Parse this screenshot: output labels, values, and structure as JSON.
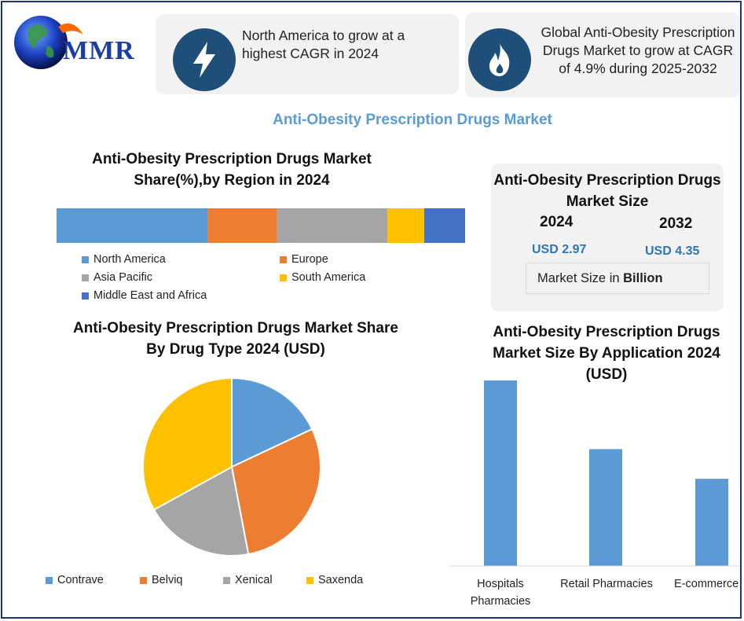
{
  "logo": {
    "text": "MMR",
    "icon": "globe-icon"
  },
  "info_cards": [
    {
      "icon": "lightning-icon",
      "text": "North America to grow at a highest CAGR in 2024"
    },
    {
      "icon": "flame-icon",
      "text": "Global Anti-Obesity Prescription Drugs Market to grow at CAGR of 4.9% during 2025-2032"
    }
  ],
  "main_title": "Anti-Obesity Prescription Drugs Market",
  "region_chart": {
    "title_line1": "Anti-Obesity Prescription Drugs Market",
    "title_line2": "Share(%),by Region in 2024",
    "legend": [
      "North America",
      "Europe",
      "Asia Pacific",
      "South America",
      "Middle East and Africa"
    ]
  },
  "market_size": {
    "title_line1": "Anti-Obesity Prescription Drugs",
    "title_line2": "Market Size",
    "year1": "2024",
    "year2": "2032",
    "value1": "USD 2.97",
    "value2": "USD 4.35",
    "unit_prefix": "Market Size in ",
    "unit_bold": "Billion"
  },
  "drug_chart": {
    "title_line1": "Anti-Obesity Prescription Drugs Market Share",
    "title_line2": "By Drug Type  2024  (USD)",
    "legend": [
      "Contrave",
      "Belviq",
      "Xenical",
      "Saxenda"
    ]
  },
  "app_chart": {
    "title_line1": "Anti-Obesity Prescription Drugs",
    "title_line2": "Market Size By Application  2024",
    "title_line3": "(USD)",
    "cat1_line1": "Hospitals",
    "cat1_line2": "Pharmacies",
    "cat2": "Retail Pharmacies",
    "cat3": "E-commerce"
  },
  "colors": {
    "blue": "#5b9bd5",
    "orange": "#ed7d31",
    "gray": "#a5a5a5",
    "yellow": "#ffc000",
    "dark_blue": "#4472c4",
    "navy": "#1f4e79"
  },
  "chart_data": [
    {
      "type": "bar",
      "orientation": "horizontal-stacked",
      "title": "Anti-Obesity Prescription Drugs Market Share(%),by Region in 2024",
      "series": [
        {
          "name": "North America",
          "values": [
            37
          ]
        },
        {
          "name": "Europe",
          "values": [
            17
          ]
        },
        {
          "name": "Asia Pacific",
          "values": [
            27
          ]
        },
        {
          "name": "South America",
          "values": [
            9
          ]
        },
        {
          "name": "Middle East and Africa",
          "values": [
            10
          ]
        }
      ],
      "legend_position": "bottom"
    },
    {
      "type": "pie",
      "title": "Anti-Obesity Prescription Drugs Market Share By Drug Type 2024 (USD)",
      "categories": [
        "Contrave",
        "Belviq",
        "Xenical",
        "Saxenda"
      ],
      "values": [
        18,
        29,
        20,
        33
      ],
      "legend_position": "bottom"
    },
    {
      "type": "bar",
      "title": "Anti-Obesity Prescription Drugs Market Size By Application 2024 (USD)",
      "categories": [
        "Hospitals Pharmacies",
        "Retail Pharmacies",
        "E-commerce"
      ],
      "values": [
        100,
        63,
        47
      ],
      "grid": false,
      "ylabel": ""
    }
  ]
}
